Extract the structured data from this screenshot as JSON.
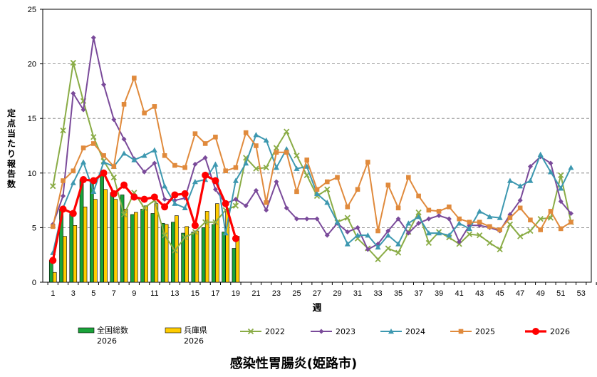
{
  "chart_data": {
    "type": "line",
    "title": "感染性胃腸炎(姫路市)",
    "xlabel": "週",
    "ylabel": "定点当たり報告数",
    "ylim": [
      0,
      25
    ],
    "xlim": [
      0,
      54
    ],
    "y_ticks": [
      "0",
      "5",
      "10",
      "15",
      "20",
      "25"
    ],
    "x_ticks": [
      "1",
      "3",
      "5",
      "7",
      "9",
      "11",
      "13",
      "15",
      "17",
      "19",
      "21",
      "23",
      "25",
      "27",
      "29",
      "31",
      "33",
      "35",
      "37",
      "39",
      "41",
      "43",
      "45",
      "47",
      "49",
      "51",
      "53"
    ],
    "grid": true,
    "legend_position": "bottom",
    "bar_series": [
      {
        "name": "全国総数\n2026",
        "label_line1": "全国総数",
        "label_line2": "2026",
        "color": "#1aa33a",
        "values": [
          2.0,
          6.7,
          6.3,
          9.4,
          9.3,
          9.9,
          8.2,
          8.0,
          6.2,
          6.7,
          6.3,
          5.4,
          5.5,
          4.5,
          4.6,
          5.0,
          5.3,
          4.6,
          3.1
        ]
      },
      {
        "name": "兵庫県\n2026",
        "label_line1": "兵庫県",
        "label_line2": "2026",
        "color": "#ffcc00",
        "values": [
          0.9,
          4.2,
          5.2,
          6.9,
          7.6,
          8.5,
          7.6,
          6.7,
          6.4,
          7.0,
          7.2,
          5.3,
          6.1,
          5.1,
          4.7,
          6.5,
          7.2,
          6.7,
          4.2
        ]
      }
    ],
    "series": [
      {
        "name": "2022",
        "color": "#8aac46",
        "marker": "x",
        "x": [
          1,
          2,
          3,
          4,
          5,
          6,
          7,
          8,
          9,
          10,
          11,
          12,
          13,
          14,
          15,
          16,
          17,
          18,
          19,
          20,
          21,
          22,
          23,
          24,
          25,
          26,
          27,
          28,
          29,
          30,
          31,
          32,
          33,
          34,
          35,
          36,
          37,
          38,
          39,
          40,
          41,
          42,
          43,
          44,
          45,
          46,
          47,
          48,
          49,
          50,
          51,
          52
        ],
        "values": [
          8.8,
          13.9,
          20.1,
          16.6,
          13.3,
          11.1,
          9.6,
          6.2,
          8.2,
          6.8,
          7.5,
          4.3,
          2.9,
          4.1,
          4.6,
          5.5,
          5.5,
          6.6,
          7.0,
          11.4,
          10.4,
          10.5,
          12.3,
          13.8,
          11.6,
          9.8,
          7.9,
          8.5,
          5.5,
          5.9,
          4.0,
          3.1,
          2.1,
          3.1,
          2.7,
          4.6,
          6.4,
          3.6,
          4.6,
          4.1,
          3.5,
          4.4,
          4.3,
          3.6,
          3.0,
          5.3,
          4.2,
          4.7,
          5.8,
          5.9,
          9.8,
          5.5
        ]
      },
      {
        "name": "2023",
        "color": "#7a4a9a",
        "marker": "diamond",
        "x": [
          1,
          2,
          3,
          4,
          5,
          6,
          7,
          8,
          9,
          10,
          11,
          12,
          13,
          14,
          15,
          16,
          17,
          18,
          19,
          20,
          21,
          22,
          23,
          24,
          25,
          26,
          27,
          28,
          29,
          30,
          31,
          32,
          33,
          34,
          35,
          36,
          37,
          38,
          39,
          40,
          41,
          42,
          43,
          44,
          45,
          46,
          47,
          48,
          49,
          50,
          51,
          52
        ],
        "values": [
          5.3,
          7.9,
          17.3,
          15.8,
          22.4,
          18.1,
          14.9,
          13.1,
          11.3,
          10.1,
          10.9,
          7.6,
          7.5,
          7.7,
          10.8,
          11.4,
          8.5,
          7.2,
          7.6,
          7.0,
          8.4,
          6.6,
          9.2,
          6.8,
          5.8,
          5.8,
          5.8,
          4.3,
          5.4,
          4.6,
          5.0,
          3.0,
          3.5,
          4.7,
          5.8,
          4.5,
          5.4,
          5.8,
          6.1,
          5.8,
          3.7,
          5.2,
          5.2,
          5.0,
          4.7,
          6.2,
          7.5,
          10.6,
          11.5,
          10.9,
          7.4,
          6.3
        ]
      },
      {
        "name": "2024",
        "color": "#3d98b0",
        "marker": "triangle",
        "x": [
          1,
          2,
          3,
          4,
          5,
          6,
          7,
          8,
          9,
          10,
          11,
          12,
          13,
          14,
          15,
          16,
          17,
          18,
          19,
          20,
          21,
          22,
          23,
          24,
          25,
          26,
          27,
          28,
          29,
          30,
          31,
          32,
          33,
          34,
          35,
          36,
          37,
          38,
          39,
          40,
          41,
          42,
          43,
          44,
          45,
          46,
          47,
          48,
          49,
          50,
          51,
          52
        ],
        "values": [
          2.7,
          6.8,
          9.1,
          11.0,
          8.3,
          11.0,
          10.6,
          11.8,
          11.2,
          11.6,
          12.1,
          8.8,
          7.2,
          6.8,
          9.2,
          9.4,
          10.8,
          4.5,
          9.3,
          10.9,
          13.5,
          13.0,
          10.5,
          12.2,
          10.4,
          10.6,
          8.1,
          7.3,
          5.5,
          3.5,
          4.3,
          4.3,
          3.2,
          4.3,
          3.5,
          5.4,
          6.0,
          4.5,
          4.5,
          4.3,
          5.4,
          4.9,
          6.5,
          6.0,
          5.9,
          9.3,
          8.8,
          9.3,
          11.7,
          10.1,
          8.6,
          10.5
        ]
      },
      {
        "name": "2025",
        "color": "#e08a3c",
        "marker": "square",
        "x": [
          1,
          2,
          3,
          4,
          5,
          6,
          7,
          8,
          9,
          10,
          11,
          12,
          13,
          14,
          15,
          16,
          17,
          18,
          19,
          20,
          21,
          22,
          23,
          24,
          25,
          26,
          27,
          28,
          29,
          30,
          31,
          32,
          33,
          34,
          35,
          36,
          37,
          38,
          39,
          40,
          41,
          42,
          43,
          44,
          45,
          46,
          47,
          48,
          49,
          50,
          51,
          52
        ],
        "values": [
          5.1,
          9.3,
          10.2,
          12.3,
          12.7,
          11.6,
          10.6,
          16.3,
          18.7,
          15.5,
          16.1,
          11.6,
          10.7,
          10.5,
          13.6,
          12.7,
          13.3,
          10.2,
          10.5,
          13.7,
          12.5,
          7.3,
          11.9,
          11.9,
          8.3,
          11.2,
          8.5,
          9.2,
          9.6,
          6.9,
          8.5,
          11.0,
          4.7,
          8.9,
          6.8,
          9.6,
          7.9,
          6.6,
          6.5,
          6.9,
          5.8,
          5.5,
          5.5,
          5.1,
          4.8,
          5.9,
          6.8,
          5.7,
          4.8,
          6.5,
          4.9,
          5.5
        ]
      },
      {
        "name": "2026",
        "color": "#ff0000",
        "marker": "circle",
        "x": [
          1,
          2,
          3,
          4,
          5,
          6,
          7,
          8,
          9,
          10,
          11,
          12,
          13,
          14,
          15,
          16,
          17,
          18,
          19
        ],
        "values": [
          2.0,
          6.7,
          6.3,
          9.4,
          9.3,
          10.0,
          8.1,
          8.9,
          7.8,
          7.6,
          7.8,
          6.9,
          8.0,
          8.1,
          5.2,
          9.8,
          9.3,
          7.2,
          4.0
        ]
      }
    ]
  }
}
